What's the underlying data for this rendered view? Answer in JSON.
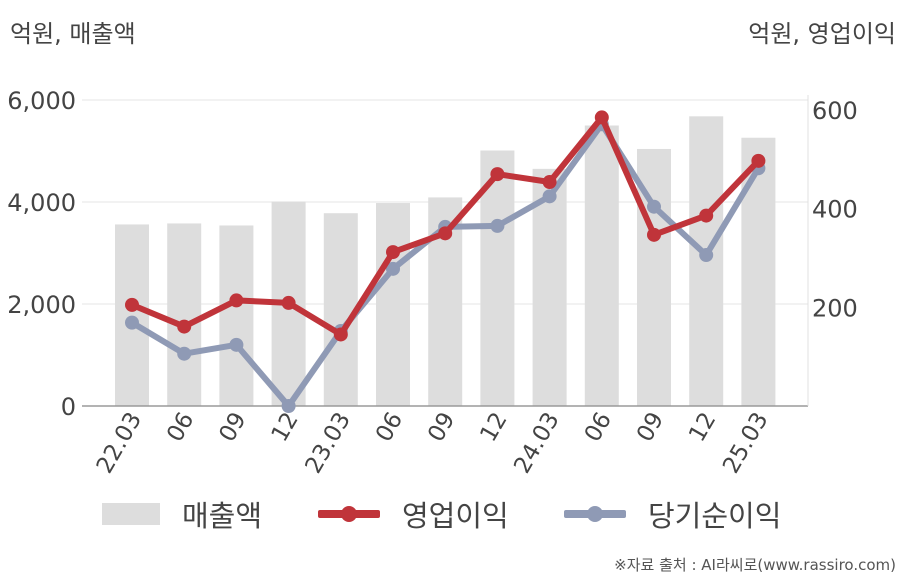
{
  "unit_left": "억원, 매출액",
  "unit_right": "억원, 영업이익",
  "source": "※자료 출처 : AI라씨로(www.rassiro.com)",
  "colors": {
    "revenue": "#dddddd",
    "operating_profit": "#c0343a",
    "net_income": "#8f9ab5"
  },
  "legend": [
    {
      "label": "매출액",
      "style": "bar"
    },
    {
      "label": "영업이익",
      "style": "line"
    },
    {
      "label": "당기순이익",
      "style": "line"
    }
  ],
  "chart_data": {
    "type": "bar+line",
    "categories": [
      "22.03",
      "06",
      "09",
      "12",
      "23.03",
      "06",
      "09",
      "12",
      "24.03",
      "06",
      "09",
      "12",
      "25.03"
    ],
    "left_axis": {
      "ticks": [
        "0",
        "2,000",
        "4,000",
        "6,000"
      ],
      "ylim": [
        0,
        6000
      ]
    },
    "right_axis": {
      "ticks": [
        "200",
        "400",
        "600"
      ],
      "ylim": [
        0,
        620
      ]
    },
    "series": [
      {
        "name": "매출액",
        "axis": "left",
        "type": "bar",
        "values": [
          3560,
          3580,
          3540,
          4010,
          3780,
          3980,
          4090,
          5010,
          4650,
          5500,
          5040,
          5680,
          5260
        ]
      },
      {
        "name": "영업이익",
        "axis": "right",
        "type": "line",
        "values": [
          205,
          161,
          214,
          209,
          145,
          312,
          350,
          470,
          454,
          585,
          347,
          386,
          497
        ]
      },
      {
        "name": "당기순이익",
        "axis": "right",
        "type": "line",
        "values": [
          169,
          106,
          124,
          0,
          152,
          278,
          363,
          365,
          425,
          571,
          404,
          306,
          482
        ]
      }
    ]
  }
}
